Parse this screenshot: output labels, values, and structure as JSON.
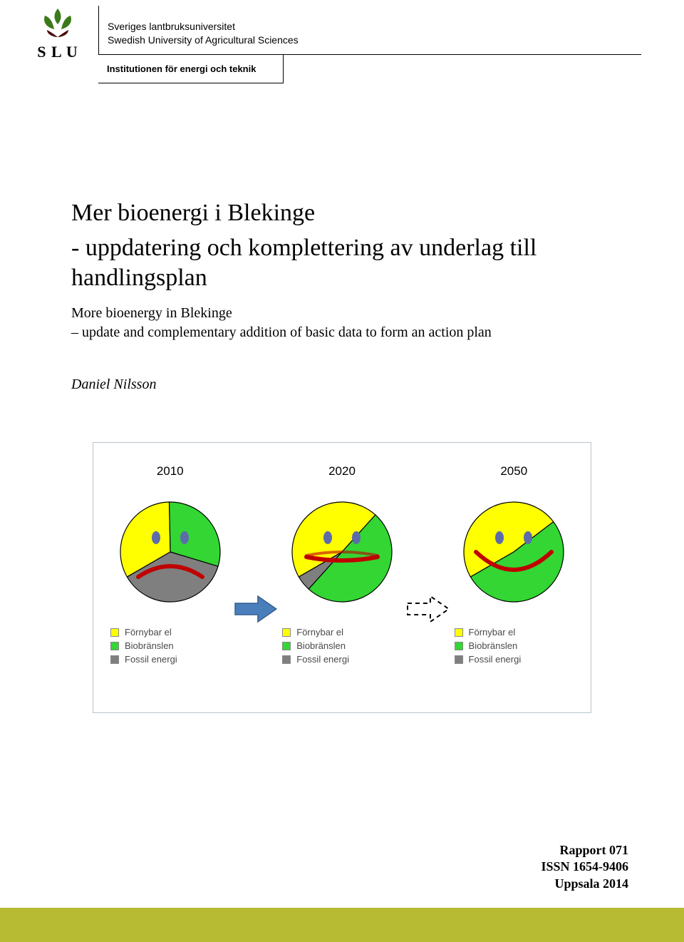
{
  "header": {
    "logo_text": "S L U",
    "logo_leaf_green": "#3b7a1a",
    "logo_leaf_dark": "#4a0e0e",
    "uni_line1": "Sveriges lantbruksuniversitet",
    "uni_line2": "Swedish University of Agricultural Sciences",
    "dept": "Institutionen för energi och teknik"
  },
  "titleblock": {
    "title_line1": "Mer bioenergi i Blekinge",
    "title_line2": "- uppdatering och komplettering av underlag till handlingsplan",
    "subtitle_line1": "More bioenergy in Blekinge",
    "subtitle_line2": "– update and complementary addition of basic data to form an action plan",
    "author": "Daniel Nilsson",
    "title_fontsize": 34,
    "subtitle_fontsize": 20
  },
  "chart": {
    "type": "infographic",
    "border_color": "#b7c3cc",
    "background_color": "#ffffff",
    "arrow_fill": "#4a7ebb",
    "arrow_stroke": "#355e8f",
    "eye_color": "#5c6caa",
    "mouth_color": "#c00000",
    "slice_stroke": "#000000",
    "panels": [
      {
        "year": "2010",
        "slices": {
          "fornybar_el": {
            "value": 33,
            "color": "#ffff00"
          },
          "biobranslen": {
            "value": 30,
            "color": "#33d633"
          },
          "fossil_energi": {
            "value": 37,
            "color": "#7f7f7f"
          }
        },
        "mood": "sad"
      },
      {
        "year": "2020",
        "slices": {
          "fornybar_el": {
            "value": 45,
            "color": "#ffff00"
          },
          "biobranslen": {
            "value": 50,
            "color": "#33d633"
          },
          "fossil_energi": {
            "value": 5,
            "color": "#7f7f7f"
          }
        },
        "mood": "neutral"
      },
      {
        "year": "2050",
        "slices": {
          "fornybar_el": {
            "value": 48,
            "color": "#ffff00"
          },
          "biobranslen": {
            "value": 52,
            "color": "#33d633"
          },
          "fossil_energi": {
            "value": 0,
            "color": "#7f7f7f"
          }
        },
        "mood": "happy"
      }
    ],
    "legend": [
      {
        "label": "Förnybar el",
        "color": "#ffff00"
      },
      {
        "label": "Biobränslen",
        "color": "#33d633"
      },
      {
        "label": "Fossil energi",
        "color": "#7f7f7f"
      }
    ]
  },
  "footer": {
    "line1": "Rapport 071",
    "line2": "ISSN 1654-9406",
    "line3": "Uppsala 2014",
    "band_color": "#b6bb33"
  }
}
